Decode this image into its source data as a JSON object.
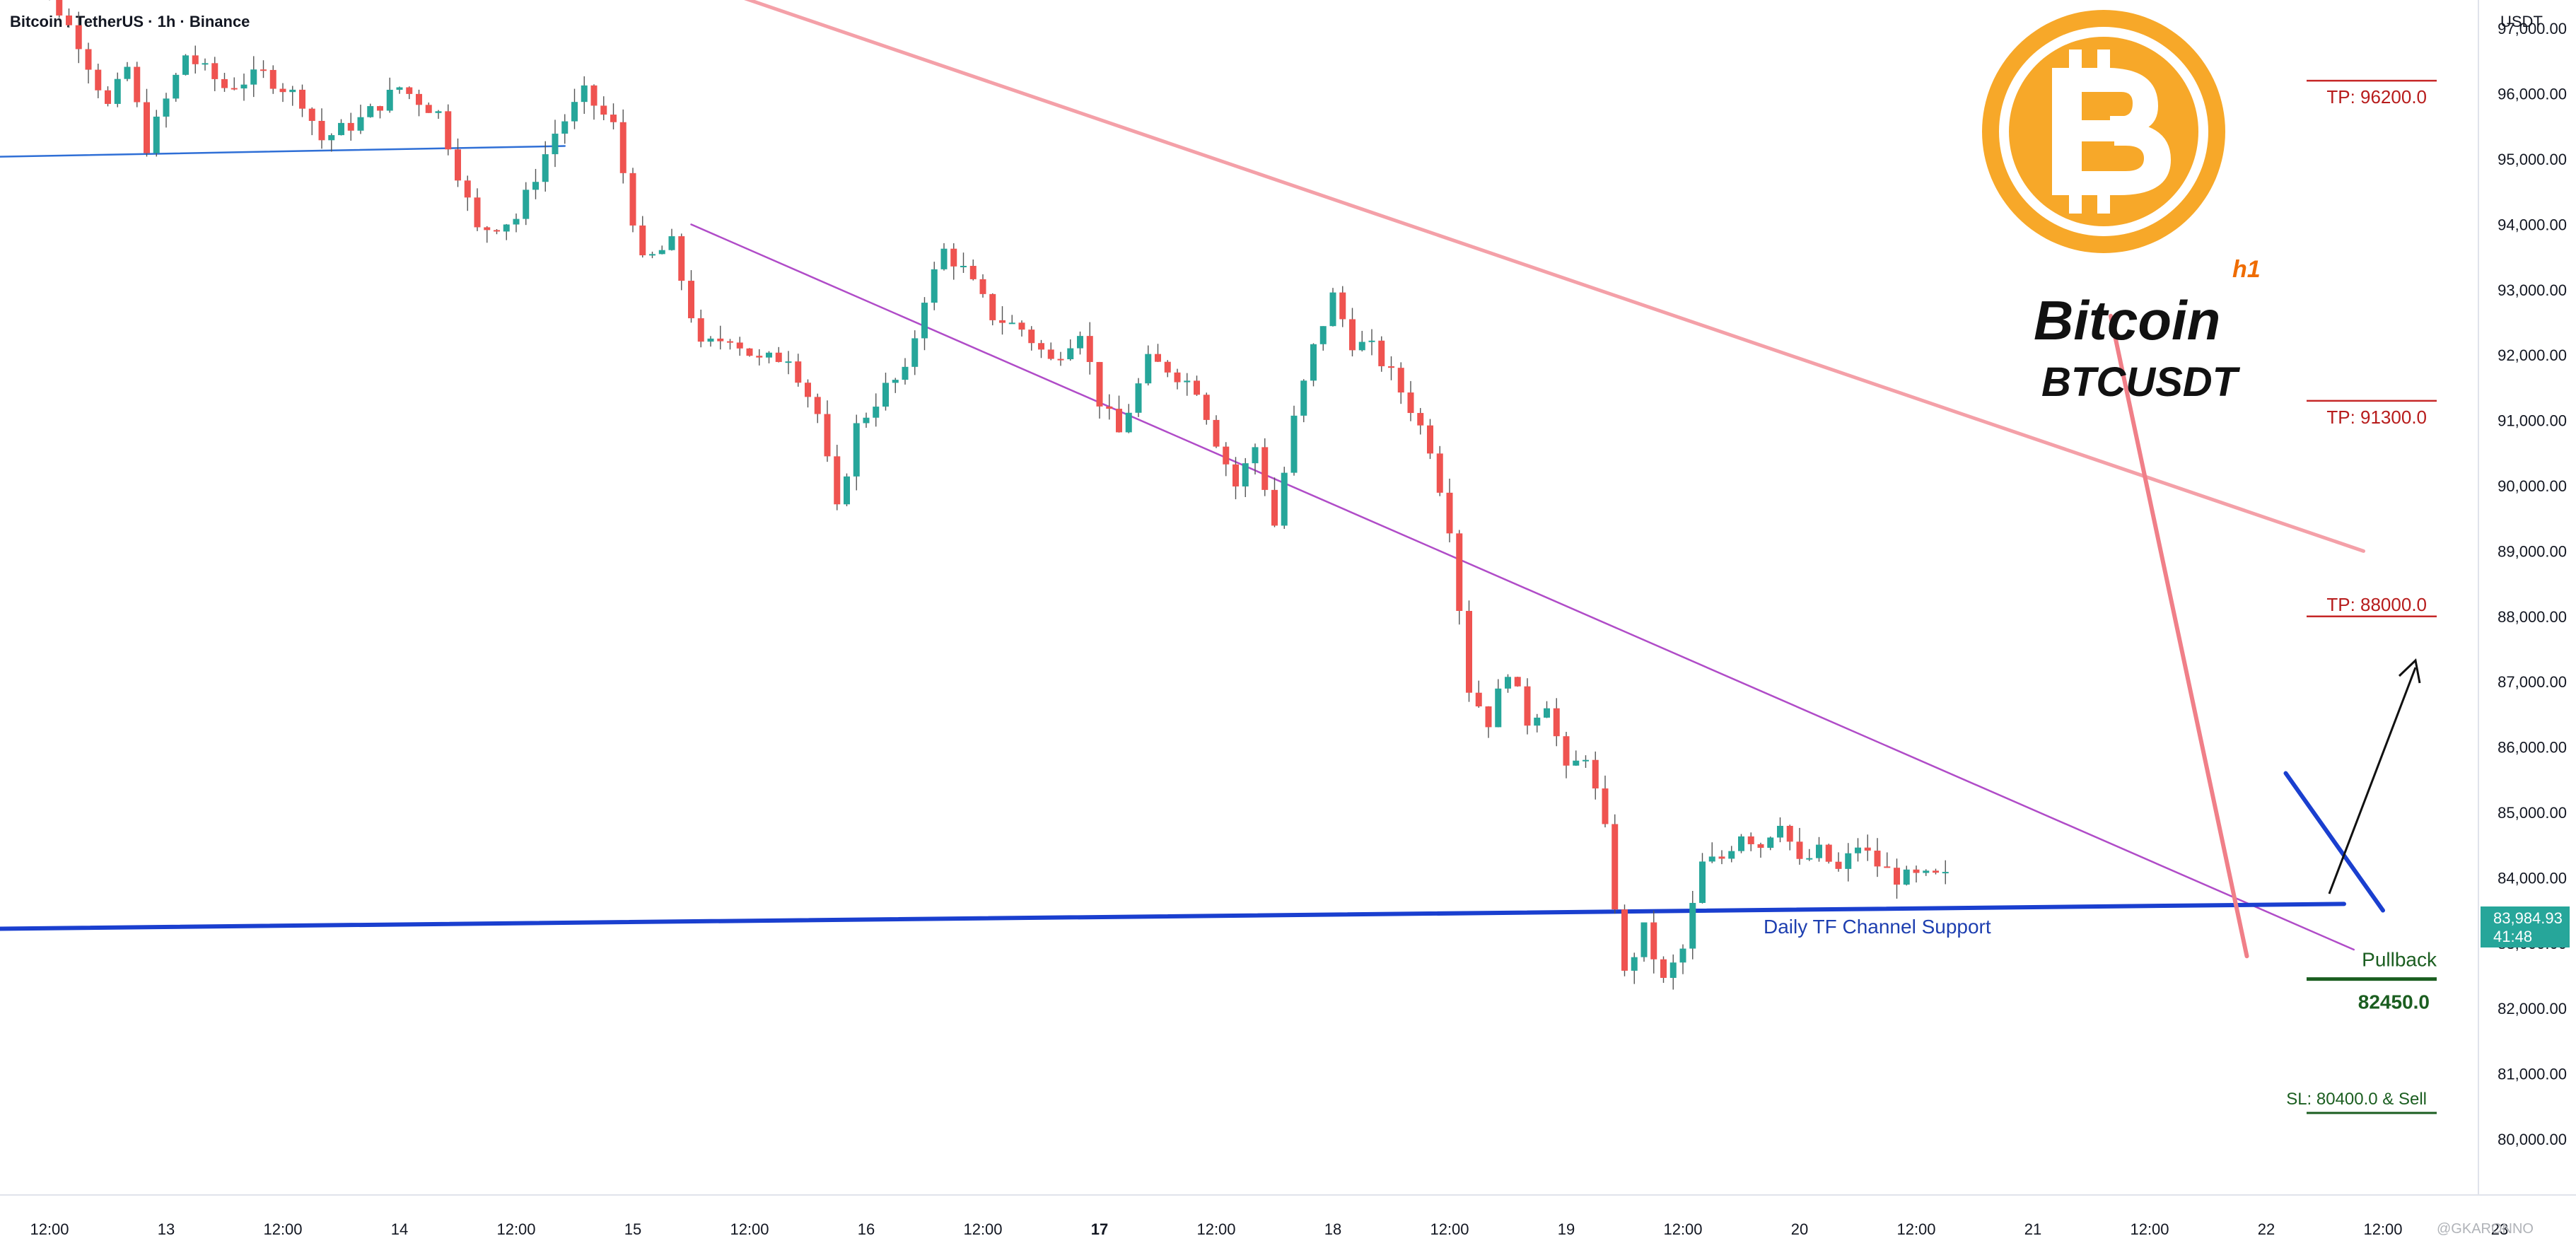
{
  "header": {
    "symbol_line": "Bitcoin / TetherUS · 1h · Binance",
    "currency": "USDT"
  },
  "brand": {
    "title": "Bitcoin",
    "subtitle": "BTCUSDT",
    "timeframe": "h1",
    "logo_icon": "bitcoin-logo-icon"
  },
  "annotations": {
    "support_label": "Daily TF Channel Support",
    "tp1": "TP: 96200.0",
    "tp2": "TP: 91300.0",
    "tp3": "TP: 88000.0",
    "pullback_label": "Pullback",
    "pullback_value": "82450.0",
    "sl_label": "SL: 80400.0 & Sell",
    "current_price": "83,984.93",
    "countdown": "41:48",
    "watermark": "@GKARONNO"
  },
  "colors": {
    "bull": "#26a69a",
    "bear": "#ef5350",
    "tp": "#c62828",
    "green": "#1b5e20",
    "support": "#1a3fcf",
    "channel_upper": "#f4a0a8",
    "channel_lower": "#b04cc8",
    "price_tag": "#26a69a"
  },
  "chart_data": {
    "type": "candlestick",
    "y_axis": {
      "range": [
        79600,
        98300
      ],
      "ticks": [
        "97,000.00",
        "96,000.00",
        "95,000.00",
        "94,000.00",
        "93,000.00",
        "92,000.00",
        "91,000.00",
        "90,000.00",
        "89,000.00",
        "88,000.00",
        "87,000.00",
        "86,000.00",
        "85,000.00",
        "84,000.00",
        "83,000.00",
        "82,000.00",
        "81,000.00",
        "80,000.00"
      ],
      "tick_values": [
        97000,
        96000,
        95000,
        94000,
        93000,
        92000,
        91000,
        90000,
        89000,
        88000,
        87000,
        86000,
        85000,
        84000,
        83000,
        82000,
        81000,
        80000
      ]
    },
    "x_axis": {
      "range_hours": [
        -18,
        242
      ],
      "labels": [
        {
          "t": 0,
          "label": "12:00"
        },
        {
          "t": 12,
          "label": "13"
        },
        {
          "t": 24,
          "label": "12:00"
        },
        {
          "t": 36,
          "label": "14"
        },
        {
          "t": 48,
          "label": "12:00"
        },
        {
          "t": 60,
          "label": "15"
        },
        {
          "t": 72,
          "label": "12:00"
        },
        {
          "t": 84,
          "label": "16"
        },
        {
          "t": 96,
          "label": "12:00"
        },
        {
          "t": 108,
          "label": "17",
          "bold": true
        },
        {
          "t": 120,
          "label": "12:00"
        },
        {
          "t": 132,
          "label": "18"
        },
        {
          "t": 144,
          "label": "12:00"
        },
        {
          "t": 156,
          "label": "19"
        },
        {
          "t": 168,
          "label": "12:00"
        },
        {
          "t": 180,
          "label": "20"
        },
        {
          "t": 192,
          "label": "12:00"
        },
        {
          "t": 204,
          "label": "21"
        },
        {
          "t": 216,
          "label": "12:00"
        },
        {
          "t": 228,
          "label": "22"
        },
        {
          "t": 240,
          "label": "12:00"
        },
        {
          "t": 252,
          "label": "23"
        }
      ]
    },
    "closes_anchor": [
      [
        -5,
        98400
      ],
      [
        0,
        97500
      ],
      [
        3,
        96800
      ],
      [
        6,
        95800
      ],
      [
        8,
        96400
      ],
      [
        10,
        95200
      ],
      [
        14,
        96600
      ],
      [
        18,
        96100
      ],
      [
        22,
        96300
      ],
      [
        26,
        95900
      ],
      [
        28,
        95300
      ],
      [
        32,
        95600
      ],
      [
        36,
        96100
      ],
      [
        40,
        95700
      ],
      [
        44,
        93900
      ],
      [
        48,
        94100
      ],
      [
        52,
        95400
      ],
      [
        55,
        96000
      ],
      [
        58,
        95500
      ],
      [
        61,
        93400
      ],
      [
        64,
        93700
      ],
      [
        67,
        92100
      ],
      [
        70,
        92300
      ],
      [
        73,
        91900
      ],
      [
        76,
        92000
      ],
      [
        79,
        91100
      ],
      [
        81,
        89600
      ],
      [
        83,
        90900
      ],
      [
        86,
        91500
      ],
      [
        88,
        91700
      ],
      [
        90,
        92900
      ],
      [
        92,
        93600
      ],
      [
        94,
        93300
      ],
      [
        97,
        92600
      ],
      [
        100,
        92400
      ],
      [
        103,
        91900
      ],
      [
        106,
        92400
      ],
      [
        108,
        91300
      ],
      [
        110,
        90800
      ],
      [
        113,
        91900
      ],
      [
        115,
        91800
      ],
      [
        118,
        91500
      ],
      [
        120,
        90700
      ],
      [
        122,
        90000
      ],
      [
        124,
        90600
      ],
      [
        126,
        89400
      ],
      [
        128,
        91000
      ],
      [
        130,
        92100
      ],
      [
        132,
        92900
      ],
      [
        134,
        92200
      ],
      [
        136,
        92100
      ],
      [
        138,
        91700
      ],
      [
        140,
        91200
      ],
      [
        142,
        90600
      ],
      [
        144,
        89400
      ],
      [
        146,
        86900
      ],
      [
        148,
        86400
      ],
      [
        150,
        87200
      ],
      [
        152,
        86400
      ],
      [
        154,
        86700
      ],
      [
        156,
        85600
      ],
      [
        158,
        85900
      ],
      [
        160,
        84700
      ],
      [
        162,
        82500
      ],
      [
        164,
        83200
      ],
      [
        166,
        82400
      ],
      [
        168,
        82900
      ],
      [
        170,
        84200
      ],
      [
        172,
        84300
      ],
      [
        174,
        84700
      ],
      [
        176,
        84500
      ],
      [
        178,
        84900
      ],
      [
        180,
        84200
      ],
      [
        182,
        84400
      ],
      [
        184,
        84100
      ],
      [
        186,
        84500
      ],
      [
        188,
        84200
      ],
      [
        190,
        84000
      ]
    ],
    "overlays": [
      {
        "name": "channel-upper",
        "from": [
          53,
          98400
        ],
        "to": [
          238,
          89000
        ]
      },
      {
        "name": "channel-lower",
        "from": [
          66,
          94000
        ],
        "to": [
          237,
          82900
        ]
      },
      {
        "name": "blue-thin-line",
        "from": [
          -18,
          95000
        ],
        "to": [
          53,
          95200
        ]
      },
      {
        "name": "daily-support",
        "from": [
          -18,
          83200
        ],
        "to": [
          236,
          83600
        ]
      },
      {
        "name": "falling-trendline",
        "from": [
          212,
          92600
        ],
        "to": [
          226,
          82800
        ]
      },
      {
        "name": "wedge-top",
        "from": [
          230,
          85600
        ],
        "to": [
          240,
          83500
        ]
      }
    ],
    "levels": {
      "tp1": 96200,
      "tp2": 91300,
      "tp3": 88000,
      "pullback": 82450,
      "sl": 80400,
      "last": 83984.93
    }
  }
}
